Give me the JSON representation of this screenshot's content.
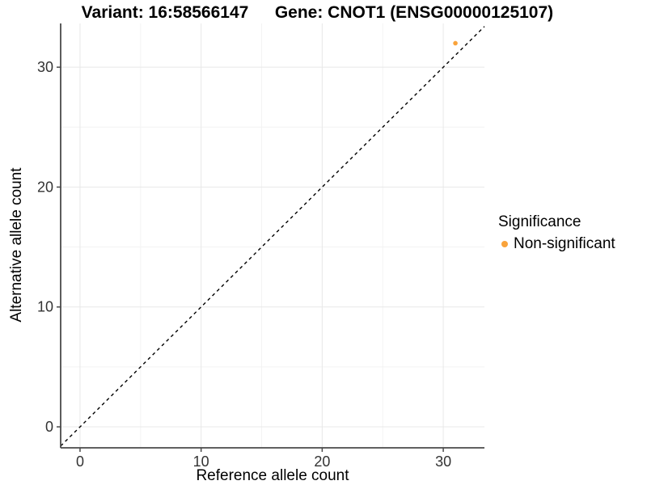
{
  "chart_data": {
    "type": "scatter",
    "title_left": "Variant: 16:58566147",
    "title_right": "Gene: CNOT1 (ENSG00000125107)",
    "xlabel": "Reference allele count",
    "ylabel": "Alternative allele count",
    "xlim": [
      -1.6,
      33.4
    ],
    "ylim": [
      -1.75,
      33.65
    ],
    "x_ticks": [
      0,
      10,
      20,
      30
    ],
    "y_ticks": [
      0,
      10,
      20,
      30
    ],
    "x_minor_ticks": [
      5,
      15,
      25
    ],
    "y_minor_ticks": [
      5,
      15,
      25
    ],
    "grid": "major+minor",
    "identity_line": {
      "slope": 1,
      "intercept": 0,
      "style": "dashed",
      "color": "#000000"
    },
    "points": [
      {
        "x": 31,
        "y": 32,
        "series": "Non-significant",
        "color": "#F9A33B"
      }
    ],
    "point_radius_px": 2.8,
    "legend_position": "right"
  },
  "legend": {
    "title": "Significance",
    "items": [
      {
        "label": "Non-significant",
        "color": "#F9A33B"
      }
    ]
  },
  "style": {
    "axis_line_color": "#4a4a4a",
    "tick_mark_color": "#4a4a4a",
    "tick_label_color": "#333333",
    "grid_major_color": "#e8e8e8",
    "grid_minor_color": "#f3f3f3",
    "background": "#ffffff"
  }
}
